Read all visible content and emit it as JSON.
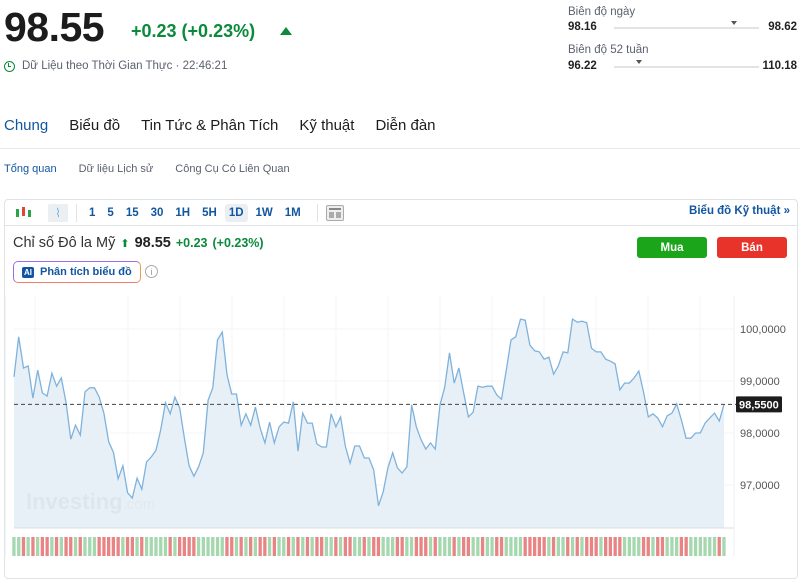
{
  "quote": {
    "price": "98.55",
    "change": "+0.23 (+0.23%)",
    "direction": "up",
    "realtime_label": "Dữ Liệu theo Thời Gian Thực · 22:46:21",
    "up_color": "#0a8a3a"
  },
  "ranges": {
    "day": {
      "label": "Biên độ ngày",
      "low": "98.16",
      "high": "98.62",
      "current_fraction": 0.83
    },
    "week52": {
      "label": "Biên độ 52 tuần",
      "low": "96.22",
      "high": "110.18",
      "current_fraction": 0.17
    }
  },
  "tabs": [
    {
      "label": "Chung",
      "active": true
    },
    {
      "label": "Biểu đồ"
    },
    {
      "label": "Tin Tức & Phân Tích"
    },
    {
      "label": "Kỹ thuật"
    },
    {
      "label": "Diễn đàn"
    }
  ],
  "subtabs": [
    {
      "label": "Tổng quan",
      "active": true
    },
    {
      "label": "Dữ liệu Lịch sử"
    },
    {
      "label": "Công Cụ Có Liên Quan"
    }
  ],
  "toolbar": {
    "intervals": [
      "1",
      "5",
      "15",
      "30",
      "1H",
      "5H",
      "1D",
      "1W",
      "1M"
    ],
    "selected": "1D",
    "tech_chart_link": "Biểu đồ Kỹ thuật »"
  },
  "instrument": {
    "name": "Chỉ số Đô la Mỹ",
    "price": "98.55",
    "change": "+0.23",
    "change_pct": "(+0.23%)"
  },
  "buttons": {
    "buy": "Mua",
    "sell": "Bán",
    "buy_color": "#1aa51a",
    "sell_color": "#e8332a"
  },
  "ai_button": {
    "badge": "AI",
    "label": "Phân tích biểu đồ"
  },
  "watermark": "Investing.com",
  "chart_data": {
    "type": "area",
    "ylim": [
      96.2,
      100.6
    ],
    "yticks": [
      "100,0000",
      "99,0000",
      "98,0000",
      "97,0000"
    ],
    "ytick_values": [
      100,
      99,
      98,
      97
    ],
    "last_price_label": "98,5500",
    "last_price": 98.55,
    "grid": true,
    "values": [
      99.08,
      99.85,
      99.25,
      99.29,
      98.67,
      99.21,
      98.77,
      98.71,
      99.15,
      98.9,
      99.06,
      98.58,
      97.88,
      98.15,
      97.96,
      98.79,
      98.87,
      98.87,
      98.69,
      98.38,
      97.83,
      97.63,
      97.12,
      97.37,
      96.85,
      96.75,
      97.13,
      96.92,
      97.44,
      97.54,
      97.67,
      98.06,
      98.58,
      98.37,
      98.69,
      98.48,
      97.9,
      97.37,
      97.17,
      97.35,
      97.62,
      98.63,
      98.87,
      99.79,
      99.94,
      99.12,
      98.75,
      98.75,
      98.15,
      98.37,
      98.15,
      98.5,
      98.1,
      97.81,
      98.21,
      97.81,
      98.12,
      98.21,
      98.19,
      98.6,
      97.65,
      98.38,
      98.19,
      98.19,
      97.79,
      97.73,
      97.73,
      98.37,
      98.12,
      98.31,
      97.75,
      97.42,
      97.75,
      97.75,
      97.52,
      97.52,
      97.29,
      96.6,
      96.87,
      97.33,
      97.62,
      97.33,
      97.23,
      97.35,
      98.54,
      98.12,
      97.87,
      97.69,
      97.81,
      97.69,
      98.54,
      98.88,
      99.54,
      98.96,
      99.25,
      98.77,
      98.31,
      98.4,
      98.9,
      98.88,
      98.9,
      98.9,
      98.73,
      98.65,
      99.21,
      99.79,
      99.85,
      100.19,
      100.17,
      99.69,
      99.58,
      99.56,
      99.42,
      99.46,
      99.13,
      99.29,
      99.56,
      99.54,
      100.19,
      100.13,
      100.15,
      100.12,
      99.63,
      99.56,
      99.56,
      99.42,
      99.38,
      99.33,
      98.83,
      98.96,
      98.96,
      99.06,
      99.19,
      98.79,
      98.31,
      98.37,
      98.29,
      98.12,
      98.33,
      98.38,
      98.56,
      98.25,
      97.9,
      97.9,
      98.0,
      98.0,
      98.19,
      98.29,
      98.38,
      98.23,
      98.55
    ],
    "line_color": "#7fb2dc",
    "fill_color": "#e3edf5"
  }
}
